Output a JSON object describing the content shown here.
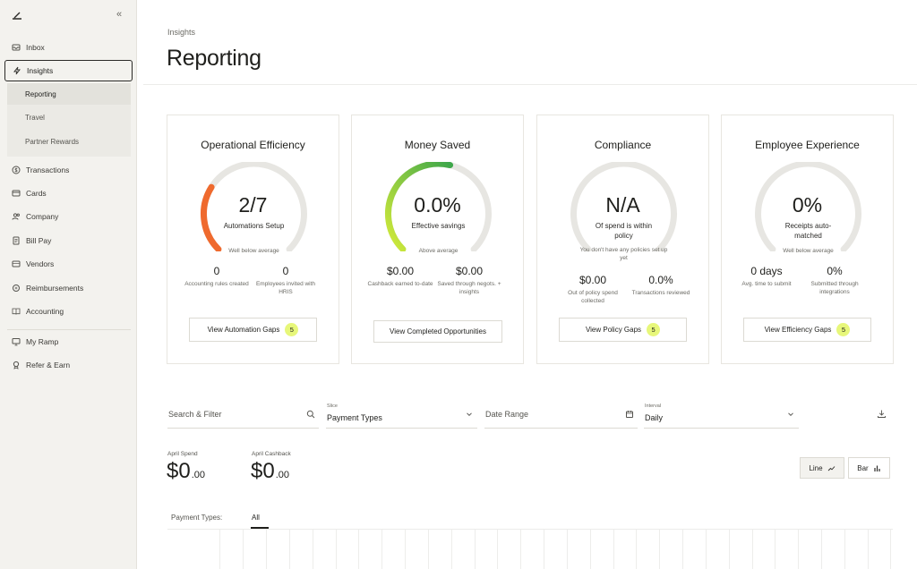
{
  "sidebar": {
    "items": [
      {
        "label": "Inbox",
        "icon": "inbox-icon"
      },
      {
        "label": "Insights",
        "icon": "bolt-icon"
      },
      {
        "label": "Transactions",
        "icon": "dollar-circle-icon"
      },
      {
        "label": "Cards",
        "icon": "card-icon"
      },
      {
        "label": "Company",
        "icon": "people-icon"
      },
      {
        "label": "Bill Pay",
        "icon": "bill-icon"
      },
      {
        "label": "Vendors",
        "icon": "truck-icon"
      },
      {
        "label": "Reimbursements",
        "icon": "refresh-icon"
      },
      {
        "label": "Accounting",
        "icon": "book-icon"
      },
      {
        "label": "My Ramp",
        "icon": "monitor-icon"
      },
      {
        "label": "Refer & Earn",
        "icon": "award-icon"
      }
    ],
    "subitems": [
      {
        "label": "Reporting"
      },
      {
        "label": "Travel"
      },
      {
        "label": "Partner Rewards"
      }
    ]
  },
  "header": {
    "breadcrumb": "Insights",
    "title": "Reporting"
  },
  "cards": [
    {
      "title": "Operational Efficiency",
      "value": "2/7",
      "label": "Automations Setup",
      "note": "Well below average",
      "progress": 0.2857,
      "color": "#ef6a2e",
      "stats": [
        {
          "value": "0",
          "label": "Accounting rules created"
        },
        {
          "value": "0",
          "label": "Employees invited with HRIS"
        }
      ],
      "button": "View Automation Gaps",
      "badge": "5"
    },
    {
      "title": "Money Saved",
      "value": "0.0%",
      "label": "Effective savings",
      "note": "Above average",
      "progress": 0.55,
      "color": "#6fbf3a",
      "stats": [
        {
          "value": "$0.00",
          "label": "Cashback earned to-date"
        },
        {
          "value": "$0.00",
          "label": "Saved through negots. + insights"
        }
      ],
      "button": "View Completed Opportunities",
      "badge": ""
    },
    {
      "title": "Compliance",
      "value": "N/A",
      "label": "Of spend is within policy",
      "note": "You don't have any policies set up yet",
      "progress": 0,
      "color": "#cfcdc7",
      "stats": [
        {
          "value": "$0.00",
          "label": "Out of policy spend collected"
        },
        {
          "value": "0.0%",
          "label": "Transactions reviewed"
        }
      ],
      "button": "View Policy Gaps",
      "badge": "5"
    },
    {
      "title": "Employee Experience",
      "value": "0%",
      "label": "Receipts auto-matched",
      "note": "Well below average",
      "progress": 0,
      "color": "#cfcdc7",
      "stats": [
        {
          "value": "0 days",
          "label": "Avg. time to submit"
        },
        {
          "value": "0%",
          "label": "Submitted through integrations"
        }
      ],
      "button": "View Efficiency Gaps",
      "badge": "5"
    }
  ],
  "filters": {
    "search_placeholder": "Search & Filter",
    "slice_label": "Slice",
    "slice_value": "Payment Types",
    "date_placeholder": "Date Range",
    "interval_label": "Interval",
    "interval_value": "Daily"
  },
  "spend": {
    "april_spend_label": "April Spend",
    "april_spend_dollars": "$0",
    "april_spend_cents": ".00",
    "april_cashback_label": "April Cashback",
    "april_cashback_dollars": "$0",
    "april_cashback_cents": ".00"
  },
  "chart_controls": {
    "line": "Line",
    "bar": "Bar"
  },
  "payment_types": {
    "label": "Payment Types:",
    "tab": "All"
  }
}
